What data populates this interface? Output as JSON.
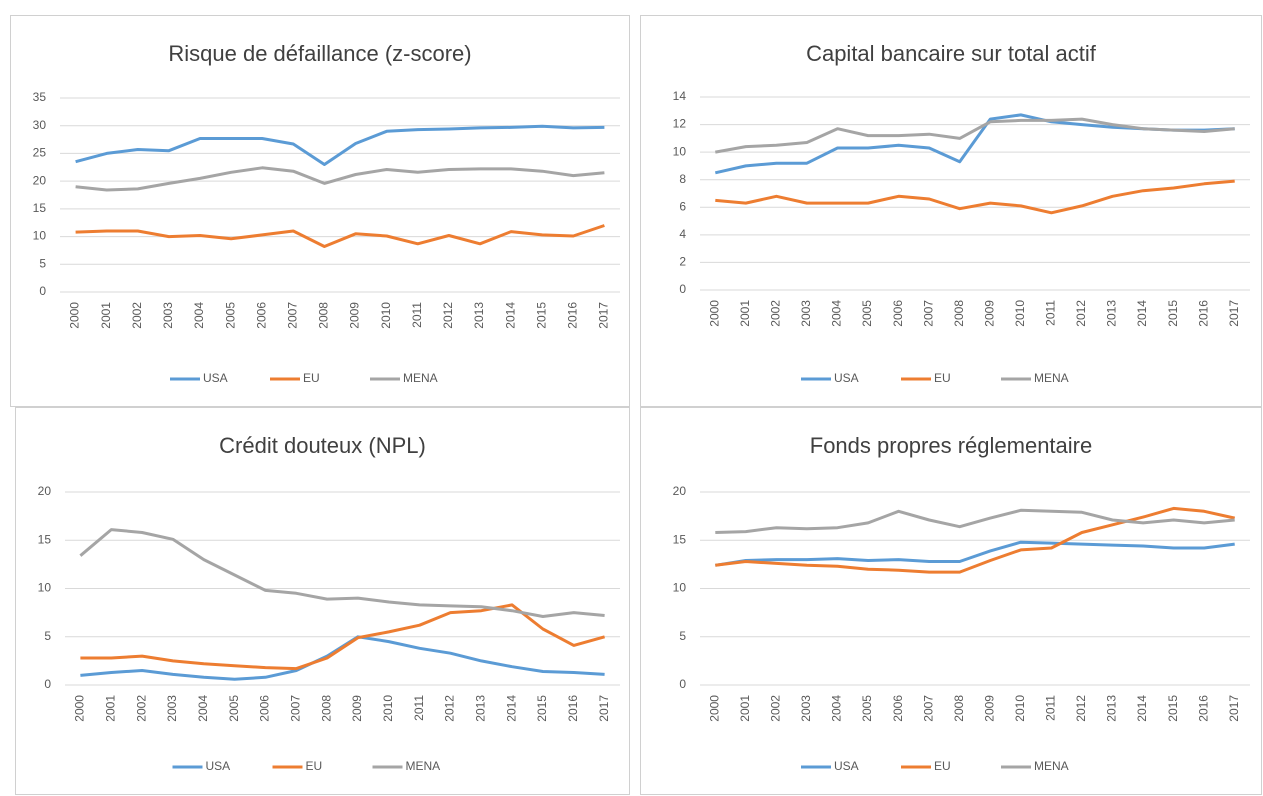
{
  "chart_data": [
    {
      "type": "line",
      "title": "Risque de défaillance (z-score)",
      "categories": [
        "2000",
        "2001",
        "2002",
        "2003",
        "2004",
        "2005",
        "2006",
        "2007",
        "2008",
        "2009",
        "2010",
        "2011",
        "2012",
        "2013",
        "2014",
        "2015",
        "2016",
        "2017"
      ],
      "series": [
        {
          "name": "USA",
          "color": "#5b9bd5",
          "values": [
            23.5,
            25,
            25.7,
            25.5,
            27.7,
            27.7,
            27.7,
            26.7,
            23,
            26.8,
            29,
            29.3,
            29.4,
            29.6,
            29.7,
            29.9,
            29.6,
            29.7
          ]
        },
        {
          "name": "EU",
          "color": "#ed7d31",
          "values": [
            10.8,
            11,
            11,
            10,
            10.2,
            9.6,
            10.3,
            11,
            8.2,
            10.5,
            10.1,
            8.7,
            10.2,
            8.7,
            10.9,
            10.3,
            10.1,
            12
          ]
        },
        {
          "name": "MENA",
          "color": "#a5a5a5",
          "values": [
            19,
            18.4,
            18.6,
            19.6,
            20.5,
            21.6,
            22.4,
            21.8,
            19.6,
            21.2,
            22.1,
            21.6,
            22.1,
            22.2,
            22.2,
            21.8,
            21,
            21.5
          ]
        }
      ],
      "ylim": [
        0,
        35
      ],
      "yticks": [
        0,
        5,
        10,
        15,
        20,
        25,
        30,
        35
      ],
      "grid": true,
      "legend": "bottom"
    },
    {
      "type": "line",
      "title": "Capital bancaire sur total actif",
      "categories": [
        "2000",
        "2001",
        "2002",
        "2003",
        "2004",
        "2005",
        "2006",
        "2007",
        "2008",
        "2009",
        "2010",
        "2011",
        "2012",
        "2013",
        "2014",
        "2015",
        "2016",
        "2017"
      ],
      "series": [
        {
          "name": "USA",
          "color": "#5b9bd5",
          "values": [
            8.5,
            9,
            9.2,
            9.2,
            10.3,
            10.3,
            10.5,
            10.3,
            9.3,
            12.4,
            12.7,
            12.2,
            12,
            11.8,
            11.7,
            11.6,
            11.6,
            11.7
          ]
        },
        {
          "name": "EU",
          "color": "#ed7d31",
          "values": [
            6.5,
            6.3,
            6.8,
            6.3,
            6.3,
            6.3,
            6.8,
            6.6,
            5.9,
            6.3,
            6.1,
            5.6,
            6.1,
            6.8,
            7.2,
            7.4,
            7.7,
            7.9
          ]
        },
        {
          "name": "MENA",
          "color": "#a5a5a5",
          "values": [
            10,
            10.4,
            10.5,
            10.7,
            11.7,
            11.2,
            11.2,
            11.3,
            11,
            12.2,
            12.3,
            12.3,
            12.4,
            12,
            11.7,
            11.6,
            11.5,
            11.7
          ]
        }
      ],
      "ylim": [
        0,
        14
      ],
      "yticks": [
        0,
        2,
        4,
        6,
        8,
        10,
        12,
        14
      ],
      "grid": true,
      "legend": "bottom"
    },
    {
      "type": "line",
      "title": "Crédit douteux (NPL)",
      "categories": [
        "2000",
        "2001",
        "2002",
        "2003",
        "2004",
        "2005",
        "2006",
        "2007",
        "2008",
        "2009",
        "2010",
        "2011",
        "2012",
        "2013",
        "2014",
        "2015",
        "2016",
        "2017"
      ],
      "series": [
        {
          "name": "USA",
          "color": "#5b9bd5",
          "values": [
            1,
            1.3,
            1.5,
            1.1,
            0.8,
            0.6,
            0.8,
            1.5,
            3,
            5,
            4.5,
            3.8,
            3.3,
            2.5,
            1.9,
            1.4,
            1.3,
            1.1
          ]
        },
        {
          "name": "EU",
          "color": "#ed7d31",
          "values": [
            2.8,
            2.8,
            3,
            2.5,
            2.2,
            2,
            1.8,
            1.7,
            2.8,
            4.9,
            5.5,
            6.2,
            7.5,
            7.7,
            8.3,
            5.8,
            4.1,
            5
          ]
        },
        {
          "name": "MENA",
          "color": "#a5a5a5",
          "values": [
            13.4,
            16.1,
            15.8,
            15.1,
            13,
            11.4,
            9.8,
            9.5,
            8.9,
            9,
            8.6,
            8.3,
            8.2,
            8.1,
            7.7,
            7.1,
            7.5,
            7.2
          ]
        }
      ],
      "ylim": [
        0,
        20
      ],
      "yticks": [
        0,
        5,
        10,
        15,
        20
      ],
      "grid": true,
      "legend": "bottom"
    },
    {
      "type": "line",
      "title": "Fonds propres réglementaire",
      "categories": [
        "2000",
        "2001",
        "2002",
        "2003",
        "2004",
        "2005",
        "2006",
        "2007",
        "2008",
        "2009",
        "2010",
        "2011",
        "2012",
        "2013",
        "2014",
        "2015",
        "2016",
        "2017"
      ],
      "series": [
        {
          "name": "USA",
          "color": "#5b9bd5",
          "values": [
            12.4,
            12.9,
            13,
            13,
            13.1,
            12.9,
            13,
            12.8,
            12.8,
            13.9,
            14.8,
            14.7,
            14.6,
            14.5,
            14.4,
            14.2,
            14.2,
            14.6
          ]
        },
        {
          "name": "EU",
          "color": "#ed7d31",
          "values": [
            12.4,
            12.8,
            12.6,
            12.4,
            12.3,
            12,
            11.9,
            11.7,
            11.7,
            12.9,
            14,
            14.2,
            15.8,
            16.6,
            17.4,
            18.3,
            18,
            17.3
          ]
        },
        {
          "name": "MENA",
          "color": "#a5a5a5",
          "values": [
            15.8,
            15.9,
            16.3,
            16.2,
            16.3,
            16.8,
            18,
            17.1,
            16.4,
            17.3,
            18.1,
            18,
            17.9,
            17.1,
            16.8,
            17.1,
            16.8,
            17.1
          ]
        }
      ],
      "ylim": [
        0,
        20
      ],
      "yticks": [
        0,
        5,
        10,
        15,
        20
      ],
      "grid": true,
      "legend": "bottom"
    }
  ]
}
